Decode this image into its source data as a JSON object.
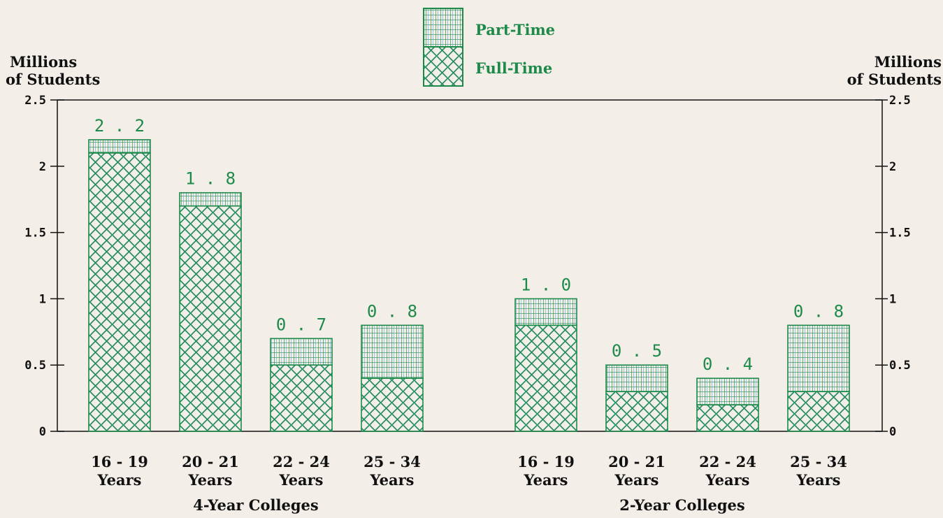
{
  "chart_data": {
    "type": "bar",
    "stacked": true,
    "y_axis": {
      "label_left_line1": "Millions",
      "label_left_line2": "of Students",
      "label_right_line1": "Millions",
      "label_right_line2": "of Students",
      "ylim": [
        0,
        2.5
      ],
      "ticks": [
        0,
        0.5,
        1,
        1.5,
        2,
        2.5
      ],
      "tick_labels": [
        "0",
        "0.5",
        "1",
        "1.5",
        "2",
        "2.5"
      ]
    },
    "legend": {
      "placement": "top-center",
      "entries": [
        {
          "name": "Part-Time",
          "pattern": "grid"
        },
        {
          "name": "Full-Time",
          "pattern": "crosshatch"
        }
      ]
    },
    "groups": [
      {
        "label": "4-Year Colleges",
        "categories": [
          {
            "line1": "16 - 19",
            "line2": "Years"
          },
          {
            "line1": "20 - 21",
            "line2": "Years"
          },
          {
            "line1": "22 - 24",
            "line2": "Years"
          },
          {
            "line1": "25 - 34",
            "line2": "Years"
          }
        ],
        "full_time": [
          2.1,
          1.7,
          0.5,
          0.4
        ],
        "part_time": [
          0.1,
          0.1,
          0.2,
          0.4
        ],
        "totals": [
          "2.2",
          "1.8",
          "0.7",
          "0.8"
        ]
      },
      {
        "label": "2-Year Colleges",
        "categories": [
          {
            "line1": "16 - 19",
            "line2": "Years"
          },
          {
            "line1": "20 - 21",
            "line2": "Years"
          },
          {
            "line1": "22 - 24",
            "line2": "Years"
          },
          {
            "line1": "25 - 34",
            "line2": "Years"
          }
        ],
        "full_time": [
          0.8,
          0.3,
          0.2,
          0.3
        ],
        "part_time": [
          0.2,
          0.2,
          0.2,
          0.5
        ],
        "totals": [
          "1.0",
          "0.5",
          "0.4",
          "0.8"
        ]
      }
    ]
  },
  "colors": {
    "green": "#1e8a4a",
    "blue": "#5aa7d6",
    "axis": "#111111",
    "background": "#f3efe8"
  }
}
